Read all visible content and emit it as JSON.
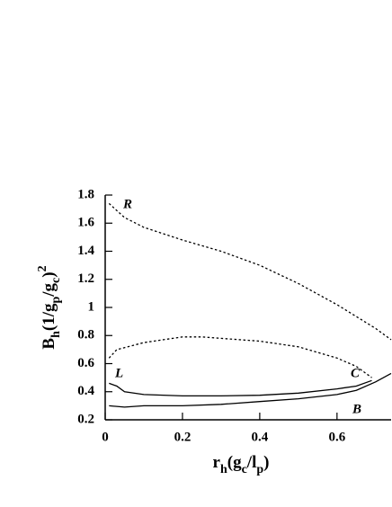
{
  "chart_data": {
    "type": "line",
    "x_label_parts": [
      "r",
      "h",
      "(g",
      "c",
      "/l",
      "p",
      ")"
    ],
    "y_label_parts": [
      "B",
      "h",
      "(1/g",
      "p",
      "/g",
      "c",
      ")",
      "2"
    ],
    "xlim": [
      0,
      0.74
    ],
    "ylim": [
      0.2,
      1.8
    ],
    "xticks": [
      0,
      0.2,
      0.4,
      0.6
    ],
    "yticks": [
      0.2,
      0.4,
      0.6,
      0.8,
      1,
      1.2,
      1.4,
      1.6,
      1.8
    ],
    "series": [
      {
        "color": "#000",
        "style": "dashed",
        "x": [
          0.01,
          0.05,
          0.1,
          0.2,
          0.3,
          0.4,
          0.5,
          0.6,
          0.7,
          0.74
        ],
        "values": [
          1.74,
          1.64,
          1.57,
          1.48,
          1.4,
          1.3,
          1.17,
          1.02,
          0.85,
          0.77
        ]
      },
      {
        "color": "#000",
        "style": "dashed",
        "x": [
          0.01,
          0.03,
          0.1,
          0.2,
          0.25,
          0.3,
          0.4,
          0.5,
          0.6,
          0.65,
          0.69
        ],
        "values": [
          0.64,
          0.7,
          0.75,
          0.79,
          0.79,
          0.78,
          0.76,
          0.72,
          0.64,
          0.58,
          0.5
        ]
      },
      {
        "color": "#000",
        "style": "solid",
        "x": [
          0.01,
          0.03,
          0.05,
          0.1,
          0.2,
          0.3,
          0.4,
          0.5,
          0.6,
          0.65,
          0.69
        ],
        "values": [
          0.46,
          0.44,
          0.4,
          0.38,
          0.37,
          0.37,
          0.375,
          0.39,
          0.42,
          0.44,
          0.48
        ]
      },
      {
        "color": "#000",
        "style": "solid",
        "x": [
          0.01,
          0.05,
          0.1,
          0.2,
          0.3,
          0.4,
          0.5,
          0.6,
          0.65,
          0.7,
          0.74
        ],
        "values": [
          0.3,
          0.29,
          0.3,
          0.3,
          0.31,
          0.33,
          0.35,
          0.38,
          0.41,
          0.47,
          0.53
        ]
      }
    ],
    "annotations": [
      "R",
      "L",
      "C",
      "B"
    ]
  }
}
